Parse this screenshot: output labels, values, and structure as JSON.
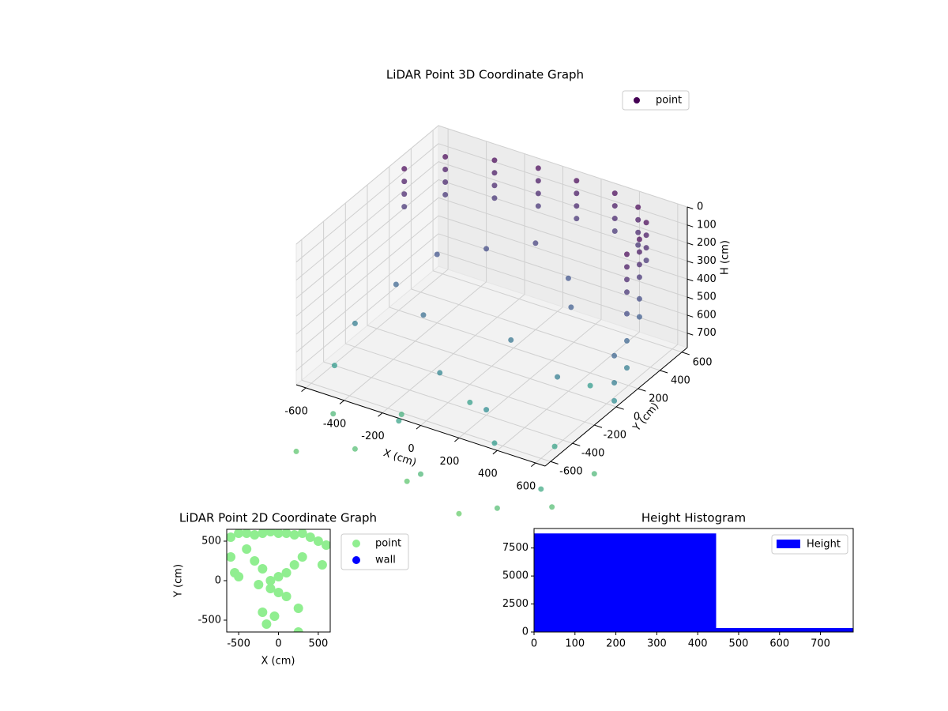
{
  "chart_data": [
    {
      "type": "scatter3d",
      "title": "LiDAR Point 3D Coordinate Graph",
      "xlabel": "X (cm)",
      "ylabel": "Y (cm)",
      "zlabel": "H (cm)",
      "xlim": [
        -650,
        650
      ],
      "ylim": [
        -650,
        650
      ],
      "zlim": [
        0,
        780
      ],
      "z_inverted": true,
      "xticks": [
        -600,
        -400,
        -200,
        0,
        200,
        400,
        600
      ],
      "yticks": [
        -600,
        -400,
        -200,
        0,
        200,
        400,
        600
      ],
      "zticks": [
        0,
        100,
        200,
        300,
        400,
        500,
        600,
        700
      ],
      "grid": true,
      "legend": "upper right",
      "cmap": "viridis",
      "series": [
        {
          "name": "point",
          "x": [
            -600,
            -600,
            -600,
            -600,
            -500,
            -500,
            -500,
            -500,
            -300,
            -300,
            -300,
            -300,
            -100,
            -100,
            -100,
            -100,
            100,
            100,
            100,
            100,
            300,
            300,
            300,
            300,
            450,
            450,
            450,
            450,
            550,
            550,
            550,
            550,
            600,
            600,
            600,
            600,
            620,
            620,
            620,
            620,
            600,
            600,
            620,
            620,
            620,
            640,
            640,
            640,
            -400,
            -200,
            0,
            200,
            300,
            -500,
            -300,
            100,
            400,
            -100,
            200,
            -600,
            -650,
            -200,
            300,
            500,
            600,
            0,
            400,
            -600,
            -400,
            -100,
            200,
            400,
            -650,
            -300,
            600,
            650,
            0
          ],
          "y": [
            250,
            250,
            250,
            250,
            450,
            450,
            450,
            450,
            550,
            550,
            550,
            550,
            600,
            600,
            600,
            600,
            600,
            600,
            600,
            600,
            600,
            600,
            600,
            600,
            550,
            550,
            550,
            550,
            450,
            450,
            450,
            450,
            300,
            300,
            300,
            300,
            150,
            150,
            150,
            150,
            300,
            300,
            150,
            150,
            150,
            0,
            0,
            0,
            200,
            300,
            400,
            350,
            200,
            0,
            -100,
            0,
            -100,
            -300,
            -400,
            -200,
            -300,
            -500,
            -500,
            -300,
            -600,
            -200,
            200,
            -400,
            -550,
            -600,
            -650,
            -650,
            -650,
            -300,
            -500,
            -200,
            -650
          ],
          "z": [
            20,
            90,
            160,
            230,
            20,
            90,
            160,
            230,
            20,
            90,
            160,
            230,
            20,
            90,
            160,
            230,
            20,
            90,
            160,
            230,
            20,
            90,
            160,
            230,
            20,
            90,
            160,
            230,
            20,
            90,
            160,
            230,
            20,
            90,
            160,
            230,
            20,
            90,
            160,
            230,
            350,
            450,
            350,
            500,
            650,
            500,
            650,
            750,
            400,
            350,
            300,
            400,
            450,
            500,
            550,
            600,
            650,
            700,
            750,
            650,
            850,
            900,
            850,
            900,
            950,
            880,
            850,
            1050,
            1100,
            1150,
            1200,
            1100,
            1150,
            1000,
            1100,
            1050,
            1050
          ]
        }
      ]
    },
    {
      "type": "scatter",
      "title": "LiDAR Point 2D Coordinate Graph",
      "xlabel": "X (cm)",
      "ylabel": "Y (cm)",
      "xlim": [
        -650,
        650
      ],
      "ylim": [
        -650,
        650
      ],
      "xticks": [
        -500,
        0,
        500
      ],
      "yticks": [
        -500,
        0,
        500
      ],
      "legend": "outside right",
      "series": [
        {
          "name": "point",
          "color": "#90ee90",
          "x": [
            -600,
            -500,
            -400,
            -300,
            -200,
            -100,
            0,
            100,
            200,
            300,
            400,
            500,
            600,
            -600,
            -550,
            -500,
            -400,
            -300,
            -200,
            -100,
            0,
            100,
            200,
            300,
            -100,
            0,
            100,
            -200,
            -50,
            250,
            -150,
            250,
            550,
            -250
          ],
          "y": [
            550,
            600,
            600,
            580,
            600,
            620,
            600,
            600,
            580,
            600,
            550,
            500,
            450,
            300,
            100,
            50,
            400,
            250,
            150,
            0,
            50,
            100,
            200,
            300,
            -100,
            -150,
            -200,
            -400,
            -450,
            -350,
            -550,
            -650,
            200,
            -50
          ]
        },
        {
          "name": "wall",
          "color": "#0000ff",
          "x": [],
          "y": []
        }
      ]
    },
    {
      "type": "histogram",
      "title": "Height Histogram",
      "bins": [
        0,
        445,
        780
      ],
      "xlim": [
        0,
        780
      ],
      "ylim": [
        0,
        9240
      ],
      "xticks": [
        0,
        100,
        200,
        300,
        400,
        500,
        600,
        700
      ],
      "yticks": [
        0,
        2500,
        5000,
        7500
      ],
      "legend": "upper right",
      "series": [
        {
          "name": "Height",
          "color": "#0000ff",
          "values": [
            8800,
            350
          ]
        }
      ]
    }
  ]
}
